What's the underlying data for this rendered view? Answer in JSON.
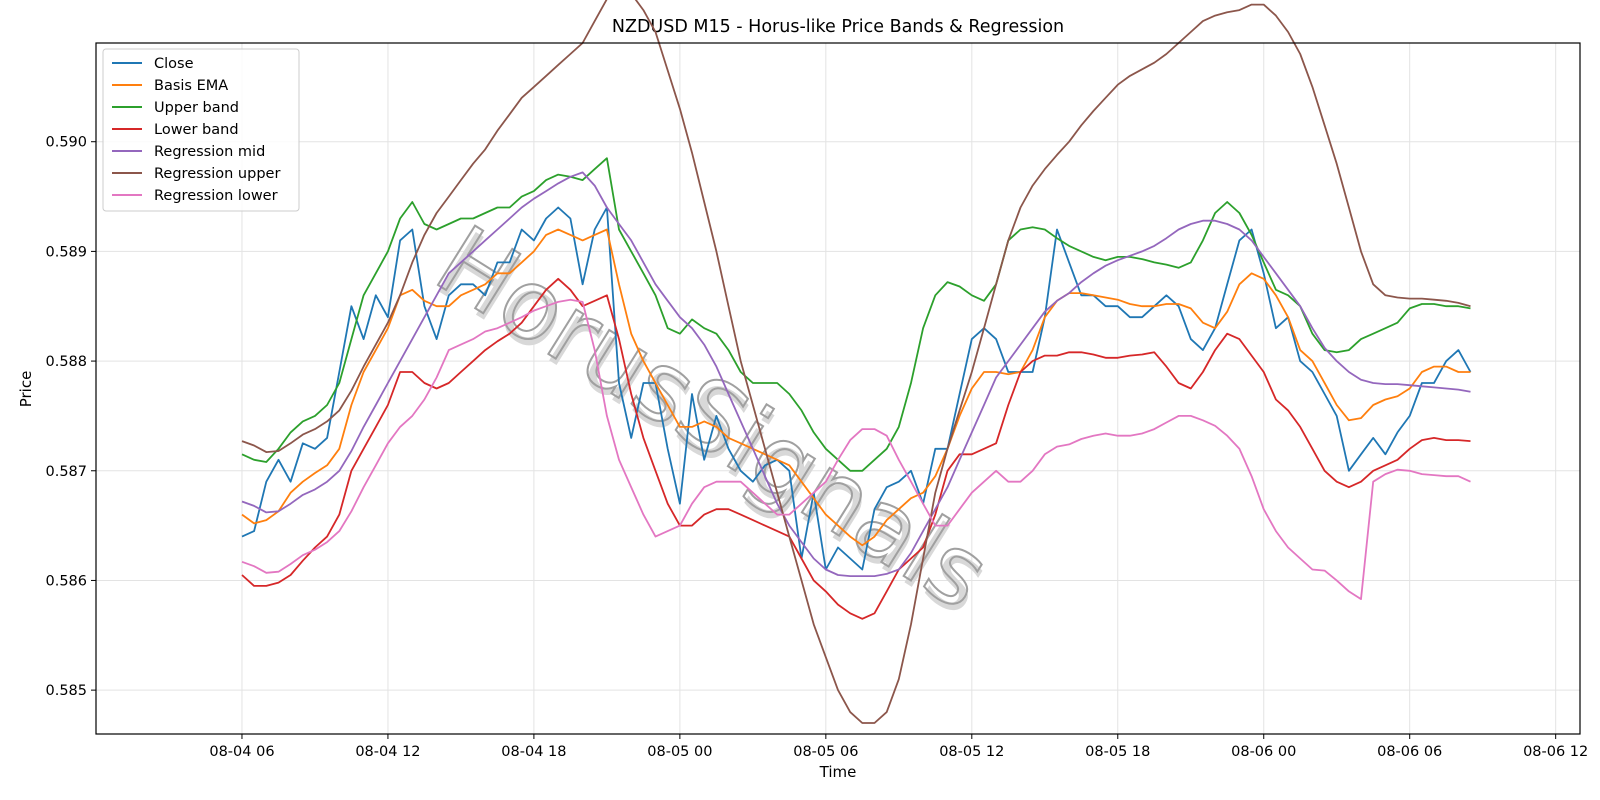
{
  "chart_data": {
    "type": "line",
    "title": "NZDUSD M15 - Horus-like Price Bands & Regression",
    "xlabel": "Time",
    "ylabel": "Price",
    "x_start": "2025-08-04 06:00",
    "x_end": "2025-08-06 12:00",
    "x_step_minutes": 30,
    "xlim": [
      "2025-08-04 00:00",
      "2025-08-06 13:00"
    ],
    "ylim": [
      0.5846,
      0.5909
    ],
    "grid": true,
    "legend_position": "top-left",
    "xticks": [
      {
        "t": "2025-08-04 06:00",
        "label": "08-04 06"
      },
      {
        "t": "2025-08-04 12:00",
        "label": "08-04 12"
      },
      {
        "t": "2025-08-04 18:00",
        "label": "08-04 18"
      },
      {
        "t": "2025-08-05 00:00",
        "label": "08-05 00"
      },
      {
        "t": "2025-08-05 06:00",
        "label": "08-05 06"
      },
      {
        "t": "2025-08-05 12:00",
        "label": "08-05 12"
      },
      {
        "t": "2025-08-05 18:00",
        "label": "08-05 18"
      },
      {
        "t": "2025-08-06 00:00",
        "label": "08-06 00"
      },
      {
        "t": "2025-08-06 06:00",
        "label": "08-06 06"
      },
      {
        "t": "2025-08-06 12:00",
        "label": "08-06 12"
      }
    ],
    "yticks": [
      {
        "v": 0.585,
        "label": "0.585"
      },
      {
        "v": 0.586,
        "label": "0.586"
      },
      {
        "v": 0.587,
        "label": "0.587"
      },
      {
        "v": 0.588,
        "label": "0.588"
      },
      {
        "v": 0.589,
        "label": "0.589"
      },
      {
        "v": 0.59,
        "label": "0.590"
      }
    ],
    "series": [
      {
        "name": "Close",
        "color": "#1f77b4",
        "values": [
          0.5864,
          0.58645,
          0.5869,
          0.5871,
          0.5869,
          0.58725,
          0.5872,
          0.5873,
          0.5879,
          0.5885,
          0.5882,
          0.5886,
          0.5884,
          0.5891,
          0.5892,
          0.5885,
          0.5882,
          0.5886,
          0.5887,
          0.5887,
          0.5886,
          0.5889,
          0.5889,
          0.5892,
          0.5891,
          0.5893,
          0.5894,
          0.5893,
          0.5887,
          0.5892,
          0.5894,
          0.5878,
          0.5873,
          0.5878,
          0.5878,
          0.5872,
          0.5867,
          0.5877,
          0.5871,
          0.5875,
          0.5872,
          0.587,
          0.5869,
          0.58705,
          0.5871,
          0.587,
          0.5862,
          0.5868,
          0.5861,
          0.5863,
          0.5862,
          0.5861,
          0.58665,
          0.58685,
          0.5869,
          0.587,
          0.5867,
          0.5872,
          0.5872,
          0.5877,
          0.5882,
          0.5883,
          0.5882,
          0.5879,
          0.5879,
          0.5879,
          0.5884,
          0.5892,
          0.5889,
          0.5886,
          0.5886,
          0.5885,
          0.5885,
          0.5884,
          0.5884,
          0.5885,
          0.5886,
          0.5885,
          0.5882,
          0.5881,
          0.5883,
          0.5887,
          0.5891,
          0.5892,
          0.5888,
          0.5883,
          0.5884,
          0.588,
          0.5879,
          0.5877,
          0.5875,
          0.587,
          0.58715,
          0.5873,
          0.58715,
          0.58735,
          0.5875,
          0.5878,
          0.5878,
          0.588,
          0.5881,
          0.5879
        ]
      },
      {
        "name": "Basis EMA",
        "color": "#ff7f0e",
        "values": [
          0.5866,
          0.58652,
          0.58655,
          0.58663,
          0.5868,
          0.5869,
          0.58698,
          0.58705,
          0.5872,
          0.5876,
          0.5879,
          0.5881,
          0.5883,
          0.5886,
          0.58865,
          0.58855,
          0.5885,
          0.5885,
          0.5886,
          0.58865,
          0.5887,
          0.5888,
          0.5888,
          0.5889,
          0.589,
          0.58915,
          0.5892,
          0.58915,
          0.5891,
          0.58915,
          0.5892,
          0.5887,
          0.58825,
          0.588,
          0.5878,
          0.5876,
          0.5874,
          0.5874,
          0.58745,
          0.5874,
          0.5873,
          0.58725,
          0.5872,
          0.58715,
          0.5871,
          0.58705,
          0.5869,
          0.58675,
          0.5866,
          0.5865,
          0.5864,
          0.58632,
          0.5864,
          0.58655,
          0.58665,
          0.58675,
          0.5868,
          0.58695,
          0.5872,
          0.5875,
          0.58775,
          0.5879,
          0.5879,
          0.58788,
          0.5879,
          0.5881,
          0.5884,
          0.58855,
          0.58862,
          0.58862,
          0.5886,
          0.58858,
          0.58856,
          0.58852,
          0.5885,
          0.5885,
          0.58852,
          0.58852,
          0.58848,
          0.58835,
          0.5883,
          0.58845,
          0.5887,
          0.5888,
          0.58875,
          0.5886,
          0.5884,
          0.5881,
          0.588,
          0.5878,
          0.5876,
          0.58746,
          0.58748,
          0.5876,
          0.58765,
          0.58768,
          0.58775,
          0.5879,
          0.58795,
          0.58795,
          0.5879,
          0.5879
        ]
      },
      {
        "name": "Upper band",
        "color": "#2ca02c",
        "values": [
          0.58715,
          0.5871,
          0.58708,
          0.5872,
          0.58735,
          0.58745,
          0.5875,
          0.5876,
          0.5878,
          0.5882,
          0.5886,
          0.5888,
          0.589,
          0.5893,
          0.58945,
          0.58925,
          0.5892,
          0.58925,
          0.5893,
          0.5893,
          0.58935,
          0.5894,
          0.5894,
          0.5895,
          0.58955,
          0.58965,
          0.5897,
          0.58968,
          0.58965,
          0.58975,
          0.58985,
          0.5892,
          0.589,
          0.5888,
          0.5886,
          0.5883,
          0.58825,
          0.58838,
          0.5883,
          0.58825,
          0.5881,
          0.5879,
          0.5878,
          0.5878,
          0.5878,
          0.5877,
          0.58755,
          0.58735,
          0.5872,
          0.5871,
          0.587,
          0.587,
          0.5871,
          0.5872,
          0.5874,
          0.5878,
          0.5883,
          0.5886,
          0.58872,
          0.58868,
          0.5886,
          0.58855,
          0.5887,
          0.5891,
          0.5892,
          0.58922,
          0.5892,
          0.58912,
          0.58905,
          0.589,
          0.58895,
          0.58892,
          0.58895,
          0.58895,
          0.58893,
          0.5889,
          0.58888,
          0.58885,
          0.5889,
          0.5891,
          0.58935,
          0.58945,
          0.58935,
          0.58915,
          0.5889,
          0.58865,
          0.5886,
          0.5885,
          0.58825,
          0.5881,
          0.58808,
          0.5881,
          0.5882,
          0.58825,
          0.5883,
          0.58835,
          0.58848,
          0.58852,
          0.58852,
          0.5885,
          0.5885,
          0.58848
        ]
      },
      {
        "name": "Lower band",
        "color": "#d62728",
        "values": [
          0.58605,
          0.58595,
          0.58595,
          0.58598,
          0.58605,
          0.58618,
          0.5863,
          0.5864,
          0.5866,
          0.587,
          0.5872,
          0.5874,
          0.5876,
          0.5879,
          0.5879,
          0.5878,
          0.58775,
          0.5878,
          0.5879,
          0.588,
          0.5881,
          0.58818,
          0.58825,
          0.58835,
          0.5885,
          0.58865,
          0.58875,
          0.58865,
          0.5885,
          0.58855,
          0.5886,
          0.5882,
          0.5877,
          0.5873,
          0.587,
          0.5867,
          0.5865,
          0.5865,
          0.5866,
          0.58665,
          0.58665,
          0.5866,
          0.58655,
          0.5865,
          0.58645,
          0.5864,
          0.5862,
          0.586,
          0.5859,
          0.58578,
          0.5857,
          0.58565,
          0.5857,
          0.5859,
          0.5861,
          0.5862,
          0.5863,
          0.5866,
          0.587,
          0.58715,
          0.58715,
          0.5872,
          0.58725,
          0.5876,
          0.5879,
          0.588,
          0.58805,
          0.58805,
          0.58808,
          0.58808,
          0.58806,
          0.58803,
          0.58803,
          0.58805,
          0.58806,
          0.58808,
          0.58795,
          0.5878,
          0.58775,
          0.5879,
          0.5881,
          0.58825,
          0.5882,
          0.58805,
          0.5879,
          0.58765,
          0.58755,
          0.5874,
          0.5872,
          0.587,
          0.5869,
          0.58685,
          0.5869,
          0.587,
          0.58705,
          0.5871,
          0.5872,
          0.58728,
          0.5873,
          0.58728,
          0.58728,
          0.58727
        ]
      },
      {
        "name": "Regression mid",
        "color": "#9467bd",
        "values": [
          0.58672,
          0.58668,
          0.58662,
          0.58663,
          0.5867,
          0.58678,
          0.58683,
          0.5869,
          0.587,
          0.58718,
          0.5874,
          0.5876,
          0.5878,
          0.588,
          0.5882,
          0.5884,
          0.5886,
          0.5888,
          0.5889,
          0.589,
          0.5891,
          0.5892,
          0.5893,
          0.5894,
          0.58948,
          0.58955,
          0.58962,
          0.58968,
          0.58972,
          0.5896,
          0.5894,
          0.58925,
          0.5891,
          0.5889,
          0.5887,
          0.58855,
          0.5884,
          0.5883,
          0.58815,
          0.58795,
          0.5877,
          0.58745,
          0.5872,
          0.58695,
          0.5867,
          0.5865,
          0.58635,
          0.5862,
          0.5861,
          0.58605,
          0.58604,
          0.58604,
          0.58604,
          0.58606,
          0.5861,
          0.58625,
          0.58645,
          0.58665,
          0.58685,
          0.5871,
          0.58735,
          0.5876,
          0.58785,
          0.588,
          0.58815,
          0.5883,
          0.58845,
          0.58855,
          0.58862,
          0.58872,
          0.5888,
          0.58887,
          0.58892,
          0.58896,
          0.589,
          0.58905,
          0.58912,
          0.5892,
          0.58925,
          0.58928,
          0.58928,
          0.58925,
          0.5892,
          0.5891,
          0.58895,
          0.5888,
          0.58865,
          0.5885,
          0.5883,
          0.58812,
          0.588,
          0.5879,
          0.58783,
          0.5878,
          0.58779,
          0.58779,
          0.58778,
          0.58777,
          0.58776,
          0.58775,
          0.58774,
          0.58772
        ]
      },
      {
        "name": "Regression upper",
        "color": "#8c564b",
        "values": [
          0.58727,
          0.58723,
          0.58717,
          0.58718,
          0.58725,
          0.58733,
          0.58738,
          0.58745,
          0.58755,
          0.58773,
          0.58795,
          0.58815,
          0.58835,
          0.5886,
          0.5889,
          0.58915,
          0.58935,
          0.5895,
          0.58965,
          0.5898,
          0.58993,
          0.5901,
          0.59025,
          0.5904,
          0.5905,
          0.5906,
          0.5907,
          0.5908,
          0.5909,
          0.5911,
          0.5913,
          0.5914,
          0.59135,
          0.5912,
          0.591,
          0.59065,
          0.5903,
          0.5899,
          0.58945,
          0.589,
          0.5885,
          0.588,
          0.5876,
          0.5872,
          0.5868,
          0.5864,
          0.586,
          0.5856,
          0.5853,
          0.585,
          0.5848,
          0.5847,
          0.5847,
          0.5848,
          0.5851,
          0.5856,
          0.5862,
          0.5868,
          0.5872,
          0.58755,
          0.5879,
          0.5883,
          0.5887,
          0.5891,
          0.5894,
          0.5896,
          0.58975,
          0.58988,
          0.59,
          0.59015,
          0.59028,
          0.5904,
          0.59052,
          0.5906,
          0.59066,
          0.59072,
          0.5908,
          0.5909,
          0.591,
          0.5911,
          0.59115,
          0.59118,
          0.5912,
          0.59125,
          0.59125,
          0.59115,
          0.591,
          0.5908,
          0.5905,
          0.59015,
          0.5898,
          0.5894,
          0.589,
          0.5887,
          0.5886,
          0.58858,
          0.58857,
          0.58857,
          0.58856,
          0.58855,
          0.58853,
          0.5885
        ]
      },
      {
        "name": "Regression lower",
        "color": "#e377c2",
        "values": [
          0.58617,
          0.58613,
          0.58607,
          0.58608,
          0.58615,
          0.58623,
          0.58628,
          0.58635,
          0.58645,
          0.58663,
          0.58685,
          0.58705,
          0.58725,
          0.5874,
          0.5875,
          0.58765,
          0.58785,
          0.5881,
          0.58815,
          0.5882,
          0.58827,
          0.5883,
          0.58835,
          0.5884,
          0.58846,
          0.5885,
          0.58854,
          0.58856,
          0.58854,
          0.5881,
          0.5875,
          0.5871,
          0.58685,
          0.5866,
          0.5864,
          0.58645,
          0.5865,
          0.5867,
          0.58685,
          0.5869,
          0.5869,
          0.5869,
          0.5868,
          0.5867,
          0.5866,
          0.5866,
          0.5867,
          0.5868,
          0.5869,
          0.5871,
          0.58728,
          0.58738,
          0.58738,
          0.58732,
          0.5871,
          0.5869,
          0.5867,
          0.5865,
          0.5865,
          0.58665,
          0.5868,
          0.5869,
          0.587,
          0.5869,
          0.5869,
          0.587,
          0.58715,
          0.58722,
          0.58724,
          0.58729,
          0.58732,
          0.58734,
          0.58732,
          0.58732,
          0.58734,
          0.58738,
          0.58744,
          0.5875,
          0.5875,
          0.58746,
          0.58741,
          0.58732,
          0.5872,
          0.58695,
          0.58665,
          0.58645,
          0.5863,
          0.5862,
          0.5861,
          0.58609,
          0.586,
          0.5859,
          0.58583,
          0.5869,
          0.58697,
          0.58701,
          0.587,
          0.58697,
          0.58696,
          0.58695,
          0.58695,
          0.5869
        ]
      }
    ],
    "watermark": {
      "text": "HorusSignals"
    }
  }
}
